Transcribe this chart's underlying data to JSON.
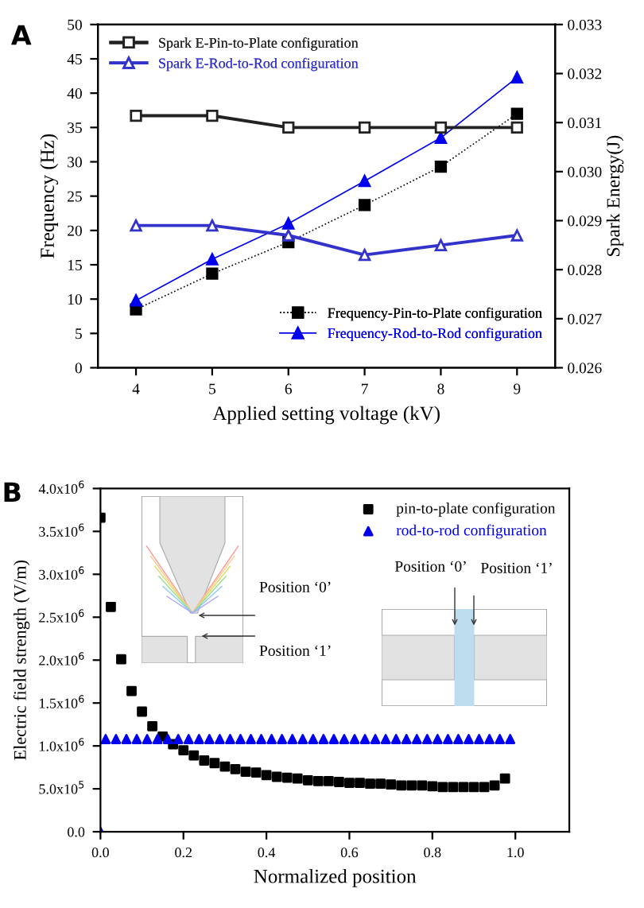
{
  "chart_data": [
    {
      "type": "line",
      "annotations": [
        "A"
      ],
      "xlabel": "Applied setting voltage (kV)",
      "ylabel": "Frequency (Hz)",
      "y2label": "Spark Energy(J)",
      "x": [
        4,
        5,
        6,
        7,
        8,
        9
      ],
      "xlim": [
        3.5,
        9.5
      ],
      "xticks": [
        4,
        5,
        6,
        7,
        8,
        9
      ],
      "ylim": [
        0,
        50
      ],
      "yticks": [
        0,
        5,
        10,
        15,
        20,
        25,
        30,
        35,
        40,
        45,
        50
      ],
      "y2lim": [
        0.026,
        0.033
      ],
      "y2ticks": [
        {
          "value": 0.026,
          "label": "0.026"
        },
        {
          "value": 0.027,
          "label": "0.027"
        },
        {
          "value": 0.028,
          "label": "0.028"
        },
        {
          "value": 0.029,
          "label": "0.029"
        },
        {
          "value": 0.03,
          "label": "0.030"
        },
        {
          "value": 0.031,
          "label": "0.031"
        },
        {
          "value": 0.032,
          "label": "0.032"
        },
        {
          "value": 0.033,
          "label": "0.033"
        }
      ],
      "grid": false,
      "legend": "top left",
      "series": [
        {
          "name": "Spark E-Pin-to-Plate configuration",
          "color": "#222222",
          "axis": "y2",
          "marker": "square",
          "line_style": "solid",
          "values": [
            0.03114,
            0.03114,
            0.0309,
            0.0309,
            0.0309,
            0.0309
          ]
        },
        {
          "name": "Spark E-Rod-to-Rod configuration",
          "color": "#3333cc",
          "axis": "y2",
          "marker": "triangle",
          "line_style": "solid",
          "values": [
            0.0289,
            0.0289,
            0.0287,
            0.0283,
            0.0285,
            0.0287
          ]
        },
        {
          "name": "Frequency-Pin-to-Plate configuration",
          "color": "#000000",
          "axis": "y",
          "marker": "square",
          "line_style": "dotted",
          "values": [
            8.5,
            13.7,
            18.3,
            23.7,
            29.3,
            37.0
          ]
        },
        {
          "name": "Frequency-Rod-to-Rod configuration",
          "color": "#0000ee",
          "axis": "y",
          "marker": "triangle",
          "line_style": "solid",
          "values": [
            9.8,
            15.8,
            21.0,
            27.2,
            33.5,
            42.3
          ]
        }
      ]
    },
    {
      "type": "scatter",
      "annotations": [
        "B",
        "Position ‘0’",
        "Position ‘1’",
        "Position ‘0’",
        "Position ‘1’"
      ],
      "xlabel": "Normalized position",
      "ylabel": "Electric field strength (V/m)",
      "xlim": [
        0,
        1.13
      ],
      "xticks": [
        {
          "value": 0,
          "label": "0.0"
        },
        0.2,
        0.4,
        0.6,
        0.8,
        {
          "value": 1,
          "label": "1.0"
        }
      ],
      "ylim": [
        0,
        4000000
      ],
      "yticks": [
        {
          "value": 0,
          "label": "0.0"
        },
        {
          "value": 500000,
          "label": "5.0x10$^{5}$"
        },
        {
          "value": 1000000,
          "label": "1.0x10$^{6}$"
        },
        {
          "value": 1500000,
          "label": "1.5x10$^{6}$"
        },
        {
          "value": 2000000,
          "label": "2.0x10$^{6}$"
        },
        {
          "value": 2500000,
          "label": "2.5x10$^{6}$"
        },
        {
          "value": 3000000,
          "label": "3.0x10$^{6}$"
        },
        {
          "value": 3500000,
          "label": "3.5x10$^{6}$"
        },
        {
          "value": 4000000,
          "label": "4.0x10$^{6}$"
        }
      ],
      "grid": false,
      "legend": "top right",
      "series": [
        {
          "name": "pin-to-plate configuration",
          "color": "#000000",
          "marker": "square",
          "x": [
            0,
            0.025,
            0.05,
            0.075,
            0.1,
            0.125,
            0.15,
            0.175,
            0.2,
            0.225,
            0.25,
            0.275,
            0.3,
            0.325,
            0.35,
            0.375,
            0.4,
            0.425,
            0.45,
            0.475,
            0.5,
            0.525,
            0.55,
            0.575,
            0.6,
            0.625,
            0.65,
            0.675,
            0.7,
            0.725,
            0.75,
            0.775,
            0.8,
            0.825,
            0.85,
            0.875,
            0.9,
            0.925,
            0.95,
            0.975
          ],
          "values": [
            3660000,
            2620000,
            2010000,
            1640000,
            1400000,
            1230000,
            1110000,
            1020000,
            950000,
            890000,
            830000,
            800000,
            760000,
            730000,
            700000,
            690000,
            660000,
            640000,
            630000,
            620000,
            600000,
            590000,
            590000,
            580000,
            570000,
            570000,
            560000,
            560000,
            550000,
            540000,
            540000,
            540000,
            530000,
            520000,
            520000,
            520000,
            520000,
            520000,
            540000,
            620000
          ]
        },
        {
          "name": "rod-to-rod configuration",
          "color": "#0000ee",
          "marker": "triangle",
          "x": [
            0,
            0.0125,
            0.0375,
            0.0625,
            0.0875,
            0.1125,
            0.1375,
            0.1625,
            0.1875,
            0.2125,
            0.2375,
            0.2625,
            0.2875,
            0.3125,
            0.3375,
            0.3625,
            0.3875,
            0.4125,
            0.4375,
            0.4625,
            0.4875,
            0.5125,
            0.5375,
            0.5625,
            0.5875,
            0.6125,
            0.6375,
            0.6625,
            0.6875,
            0.7125,
            0.7375,
            0.7625,
            0.7875,
            0.8125,
            0.8375,
            0.8625,
            0.8875,
            0.9125,
            0.9375,
            0.9625,
            0.9875
          ],
          "values": [
            0,
            1080000,
            1080000,
            1080000,
            1080000,
            1080000,
            1080000,
            1080000,
            1080000,
            1080000,
            1080000,
            1080000,
            1080000,
            1080000,
            1080000,
            1080000,
            1080000,
            1080000,
            1080000,
            1080000,
            1080000,
            1080000,
            1080000,
            1080000,
            1080000,
            1080000,
            1080000,
            1080000,
            1080000,
            1080000,
            1080000,
            1080000,
            1080000,
            1080000,
            1080000,
            1080000,
            1080000,
            1080000,
            1080000,
            1080000,
            1080000
          ]
        }
      ]
    }
  ]
}
